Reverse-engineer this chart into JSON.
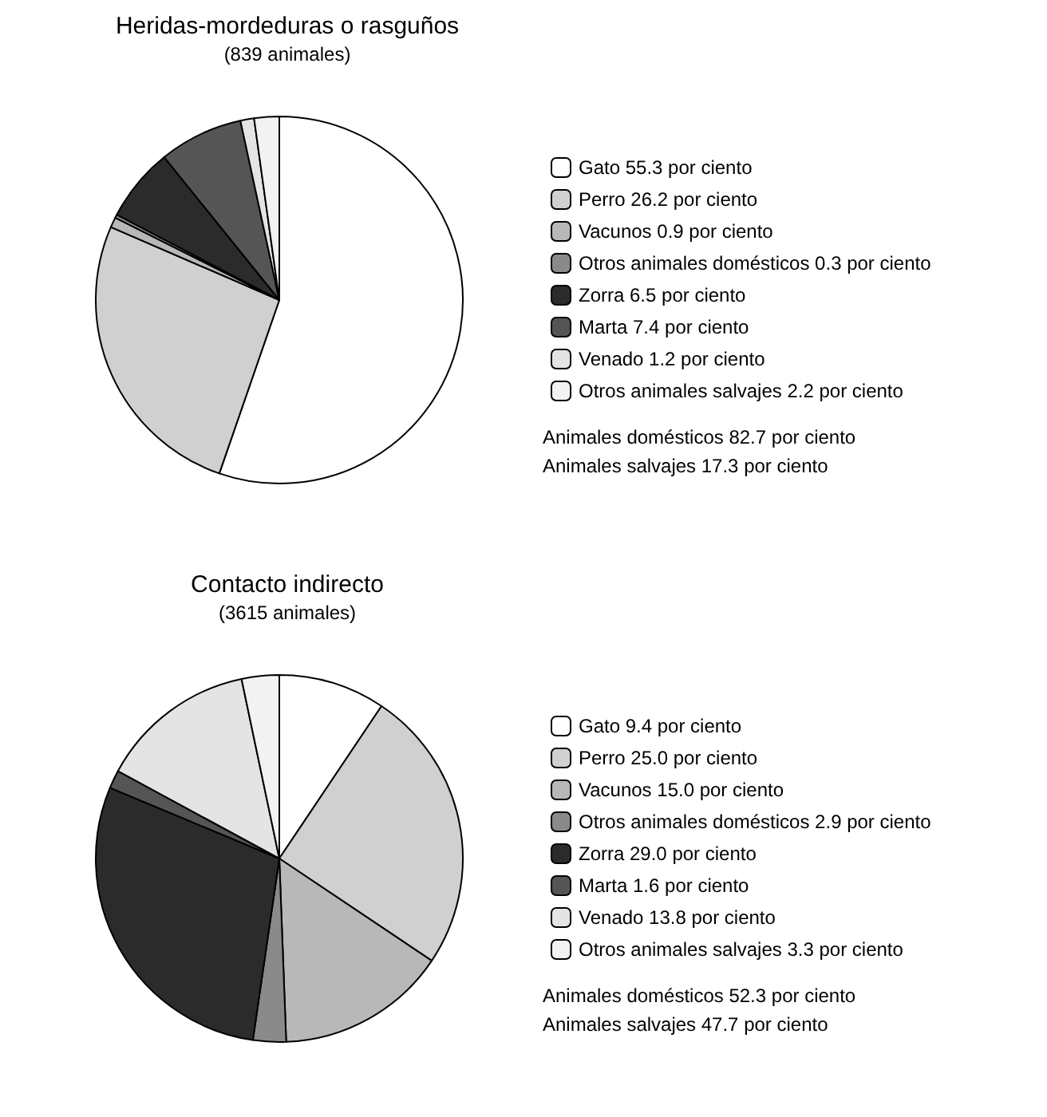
{
  "chart_data": [
    {
      "type": "pie",
      "title": "Heridas-mordeduras o rasguños",
      "subtitle": "(839 animales)",
      "categories": [
        "Gato",
        "Perro",
        "Vacunos",
        "Otros animales domésticos",
        "Zorra",
        "Marta",
        "Venado",
        "Otros animales salvajes"
      ],
      "values": [
        55.3,
        26.2,
        0.9,
        0.3,
        6.5,
        7.4,
        1.2,
        2.2
      ],
      "value_labels": [
        "55.3 por ciento",
        "26.2 por ciento",
        "0.9 por ciento",
        "0.3 por ciento",
        "6.5 por ciento",
        "7.4 por ciento",
        "1.2 por ciento",
        "2.2 por ciento"
      ],
      "colors": [
        "#ffffff",
        "#d0d0d0",
        "#b8b8b8",
        "#8a8a8a",
        "#2b2b2b",
        "#555555",
        "#e4e4e4",
        "#f2f2f2"
      ],
      "legend": "right",
      "annotations": [
        "Animales domésticos 82.7 por ciento",
        "Animales salvajes 17.3 por ciento"
      ]
    },
    {
      "type": "pie",
      "title": "Contacto indirecto",
      "subtitle": "(3615 animales)",
      "categories": [
        "Gato",
        "Perro",
        "Vacunos",
        "Otros animales domésticos",
        "Zorra",
        "Marta",
        "Venado",
        "Otros animales salvajes"
      ],
      "values": [
        9.4,
        25.0,
        15.0,
        2.9,
        29.0,
        1.6,
        13.8,
        3.3
      ],
      "value_labels": [
        "9.4 por ciento",
        "25.0 por ciento",
        "15.0 por ciento",
        "2.9 por ciento",
        "29.0 por ciento",
        "1.6 por ciento",
        "13.8 por ciento",
        "3.3 por ciento"
      ],
      "colors": [
        "#ffffff",
        "#d0d0d0",
        "#b8b8b8",
        "#8a8a8a",
        "#2b2b2b",
        "#555555",
        "#e4e4e4",
        "#f2f2f2"
      ],
      "legend": "right",
      "annotations": [
        "Animales domésticos 52.3 por ciento",
        "Animales salvajes 47.7 por ciento"
      ]
    }
  ]
}
